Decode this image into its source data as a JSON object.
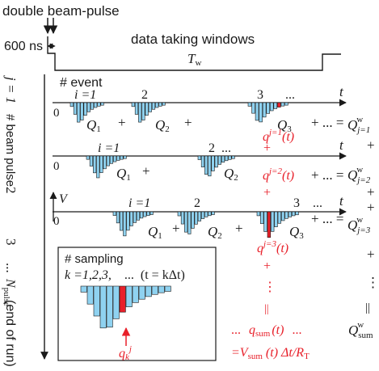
{
  "labels": {
    "header": "double beam-pulse",
    "gap": "600 ns",
    "window": "data taking windows",
    "window_width": "T",
    "window_width_sub": "w",
    "event_heading": "# event",
    "pulse_index": "j = 1",
    "pulse_heading": "# beam pulse",
    "v_axis": "V",
    "t_axis": "t",
    "last_pulse": "N",
    "last_pulse_sub": "pulse",
    "end_of_run": "(end of run)",
    "ellipsis": "...",
    "plus": "+",
    "zero": "0",
    "vertical_ellipsis": "⋮",
    "equal_rotated": "||",
    "row_sum_eq": "+ ... =",
    "run_charge": "Q",
    "run_charge_sup": "w",
    "run_charge_sub": "sum"
  },
  "rows": [
    {
      "pulse": "1",
      "i_labels": [
        "i =1",
        "2",
        "3",
        "..."
      ],
      "charges": [
        "Q1",
        "Q2",
        "Q3"
      ],
      "sum": "Q",
      "sum_sup": "w",
      "sum_sub": "j=1",
      "red_label": "q",
      "red_sup": "j=1",
      "red_arg": "(t)"
    },
    {
      "pulse": "2",
      "i_labels": [
        "i =1",
        "2",
        "..."
      ],
      "charges": [
        "Q1",
        "Q2"
      ],
      "sum": "Q",
      "sum_sup": "w",
      "sum_sub": "j=2",
      "red_label": "q",
      "red_sup": "j=2",
      "red_arg": "(t)"
    },
    {
      "pulse": "3",
      "i_labels": [
        "i =1",
        "2",
        "3",
        "..."
      ],
      "charges": [
        "Q1",
        "Q2",
        "Q3"
      ],
      "sum": "Q",
      "sum_sup": "w",
      "sum_sub": "j=3",
      "red_label": "q",
      "red_sup": "j=3",
      "red_arg": "(t)"
    }
  ],
  "sampling": {
    "title": "# sampling",
    "k_list": "k =1,2,3,",
    "dots": "...",
    "t_def": "(t = kΔt)",
    "sample_label": "q",
    "sample_sub": "k",
    "sample_sup": "j"
  },
  "sum_block": {
    "q_sum": "q",
    "q_sum_sub": "sum",
    "q_sum_arg": "(t)",
    "v_sum_line": "=V",
    "v_sum_sub": "sum",
    "v_sum_rest": "(t) Δt/R",
    "v_sum_r_sub": "T"
  },
  "colors": {
    "bar_fill": "#8fd2f0",
    "bar_stroke": "#1a1a1a",
    "highlight": "#e8202a",
    "text": "#1a1a1a",
    "red_text": "#e8202a"
  }
}
